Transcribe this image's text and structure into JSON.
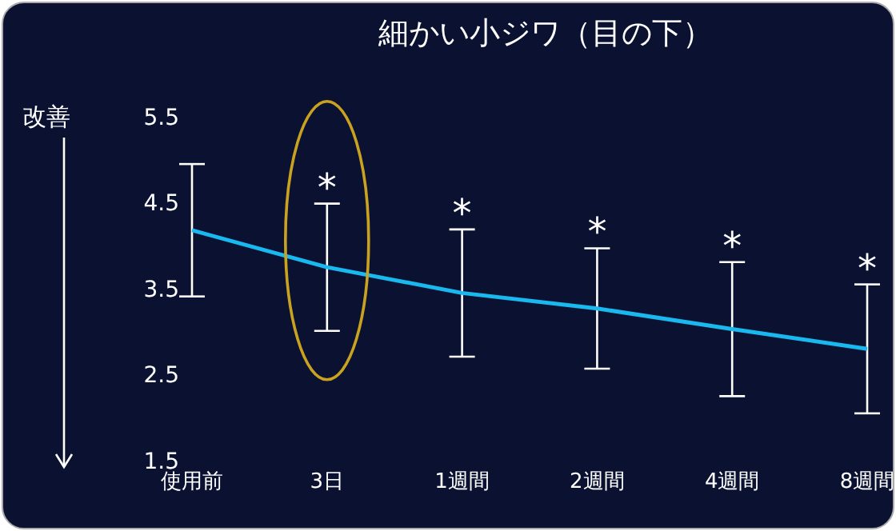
{
  "chart_data": {
    "type": "line",
    "title": "細かい小ジワ（目の下）",
    "ylabel": "改善",
    "categories": [
      "使用前",
      "3日",
      "1週間",
      "2週間",
      "4週間",
      "8週間"
    ],
    "series": [
      {
        "color": "#19b8ee",
        "values": [
          4.18,
          3.75,
          3.45,
          3.27,
          3.03,
          2.8
        ],
        "errors": [
          0.77,
          0.74,
          0.74,
          0.7,
          0.78,
          0.75
        ]
      }
    ],
    "ylim": [
      1.5,
      5.5
    ],
    "yticks": [
      1.5,
      2.5,
      3.5,
      4.5,
      5.5
    ],
    "grid": false,
    "legend": false,
    "marker": "none",
    "line_style": "solid",
    "annotations": [
      {
        "text": "*",
        "x": "3日",
        "y": 4.49
      },
      {
        "text": "*",
        "x": "1週間",
        "y": 4.19
      },
      {
        "text": "*",
        "x": "2週間",
        "y": 3.97
      },
      {
        "text": "*",
        "x": "4週間",
        "y": 3.81
      },
      {
        "text": "*",
        "x": "8週間",
        "y": 3.55
      }
    ]
  }
}
